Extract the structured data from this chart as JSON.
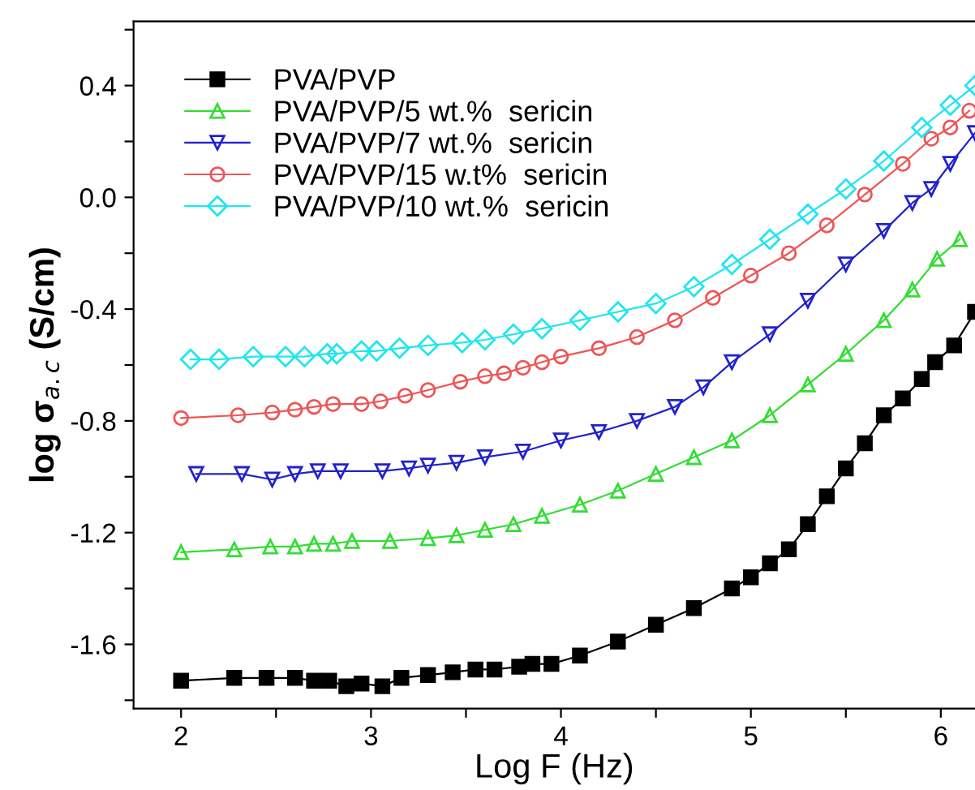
{
  "chart_data": {
    "type": "line",
    "xlabel": "Log F (Hz)",
    "ylabel": "log σ$_{a.c}$ (S/cm)",
    "xlim": [
      1.75,
      6.18
    ],
    "ylim": [
      -1.83,
      0.63
    ],
    "xticks": [
      2,
      {
        "value": 2.5,
        "label": null
      },
      3,
      {
        "value": 3.5,
        "label": null
      },
      4,
      {
        "value": 4.5,
        "label": null
      },
      5,
      {
        "value": 5.5,
        "label": null
      },
      6
    ],
    "yticks": [
      {
        "value": -1.8,
        "label": null
      },
      -1.6,
      {
        "value": -1.4,
        "label": null
      },
      -1.2,
      {
        "value": -1.0,
        "label": null
      },
      -0.8,
      {
        "value": -0.6,
        "label": null
      },
      -0.4,
      {
        "value": -0.2,
        "label": null
      },
      {
        "value": 0.0,
        "label": "0.0"
      },
      {
        "value": 0.2,
        "label": null
      },
      0.4,
      {
        "value": 0.6,
        "label": null
      }
    ],
    "legend": "top left",
    "grid": false,
    "line_style": "solid",
    "series": [
      {
        "name": "PVA/PVP",
        "color": "#000000",
        "marker": "square",
        "x": [
          2,
          2.28,
          2.45,
          2.6,
          2.7,
          2.78,
          2.87,
          2.95,
          3.06,
          3.16,
          3.3,
          3.43,
          3.55,
          3.65,
          3.78,
          3.85,
          3.95,
          4.1,
          4.3,
          4.5,
          4.7,
          4.9,
          5.0,
          5.1,
          5.2,
          5.3,
          5.4,
          5.5,
          5.6,
          5.7,
          5.8,
          5.9,
          5.97,
          6.07,
          6.18
        ],
        "values": [
          -1.73,
          -1.72,
          -1.72,
          -1.72,
          -1.73,
          -1.73,
          -1.75,
          -1.74,
          -1.75,
          -1.72,
          -1.71,
          -1.7,
          -1.69,
          -1.69,
          -1.68,
          -1.67,
          -1.67,
          -1.64,
          -1.59,
          -1.53,
          -1.47,
          -1.4,
          -1.36,
          -1.31,
          -1.26,
          -1.17,
          -1.07,
          -0.97,
          -0.88,
          -0.78,
          -0.72,
          -0.65,
          -0.59,
          -0.53,
          -0.41
        ]
      },
      {
        "name": "PVA/PVP/5 wt.%  sericin",
        "color": "#33dd33",
        "marker": "triangle",
        "x": [
          2,
          2.28,
          2.47,
          2.6,
          2.7,
          2.8,
          2.9,
          3.1,
          3.3,
          3.45,
          3.6,
          3.75,
          3.9,
          4.1,
          4.3,
          4.5,
          4.7,
          4.9,
          5.1,
          5.3,
          5.5,
          5.7,
          5.85,
          5.98,
          6.1
        ],
        "values": [
          -1.27,
          -1.26,
          -1.25,
          -1.25,
          -1.24,
          -1.24,
          -1.23,
          -1.23,
          -1.22,
          -1.21,
          -1.19,
          -1.17,
          -1.14,
          -1.1,
          -1.05,
          -0.99,
          -0.93,
          -0.87,
          -0.78,
          -0.67,
          -0.56,
          -0.44,
          -0.33,
          -0.22,
          -0.15
        ]
      },
      {
        "name": "PVA/PVP/7 wt.%  sericin",
        "color": "#2222cc",
        "marker": "triangle_down",
        "x": [
          2.08,
          2.32,
          2.48,
          2.6,
          2.72,
          2.84,
          3.06,
          3.2,
          3.3,
          3.45,
          3.6,
          3.8,
          4.0,
          4.2,
          4.4,
          4.6,
          4.75,
          4.9,
          5.1,
          5.3,
          5.5,
          5.7,
          5.85,
          5.95,
          6.05,
          6.18
        ],
        "values": [
          -0.99,
          -0.99,
          -1.01,
          -0.99,
          -0.98,
          -0.98,
          -0.98,
          -0.97,
          -0.96,
          -0.95,
          -0.93,
          -0.91,
          -0.87,
          -0.84,
          -0.8,
          -0.75,
          -0.68,
          -0.59,
          -0.49,
          -0.37,
          -0.24,
          -0.12,
          -0.02,
          0.03,
          0.12,
          0.23
        ]
      },
      {
        "name": "PVA/PVP/15 w.t%  sericin",
        "color": "#ee5555",
        "marker": "circle",
        "x": [
          2,
          2.3,
          2.48,
          2.6,
          2.7,
          2.8,
          2.95,
          3.05,
          3.18,
          3.3,
          3.47,
          3.6,
          3.7,
          3.8,
          3.9,
          4.0,
          4.2,
          4.4,
          4.6,
          4.8,
          5.0,
          5.2,
          5.4,
          5.6,
          5.8,
          5.95,
          6.05,
          6.15
        ],
        "values": [
          -0.79,
          -0.78,
          -0.77,
          -0.76,
          -0.75,
          -0.74,
          -0.74,
          -0.73,
          -0.71,
          -0.69,
          -0.66,
          -0.64,
          -0.63,
          -0.61,
          -0.59,
          -0.57,
          -0.54,
          -0.5,
          -0.44,
          -0.36,
          -0.28,
          -0.2,
          -0.1,
          0.01,
          0.12,
          0.21,
          0.25,
          0.31
        ]
      },
      {
        "name": "PVA/PVP/10 wt.%  sericin",
        "color": "#22e5f0",
        "marker": "diamond",
        "x": [
          2.05,
          2.2,
          2.38,
          2.55,
          2.65,
          2.77,
          2.82,
          2.95,
          3.03,
          3.15,
          3.3,
          3.48,
          3.6,
          3.75,
          3.9,
          4.1,
          4.3,
          4.5,
          4.7,
          4.9,
          5.1,
          5.3,
          5.5,
          5.7,
          5.9,
          6.05,
          6.18
        ],
        "values": [
          -0.58,
          -0.58,
          -0.57,
          -0.57,
          -0.57,
          -0.56,
          -0.56,
          -0.55,
          -0.55,
          -0.54,
          -0.53,
          -0.52,
          -0.51,
          -0.49,
          -0.47,
          -0.44,
          -0.41,
          -0.38,
          -0.32,
          -0.24,
          -0.15,
          -0.06,
          0.03,
          0.13,
          0.25,
          0.33,
          0.4
        ]
      }
    ]
  }
}
